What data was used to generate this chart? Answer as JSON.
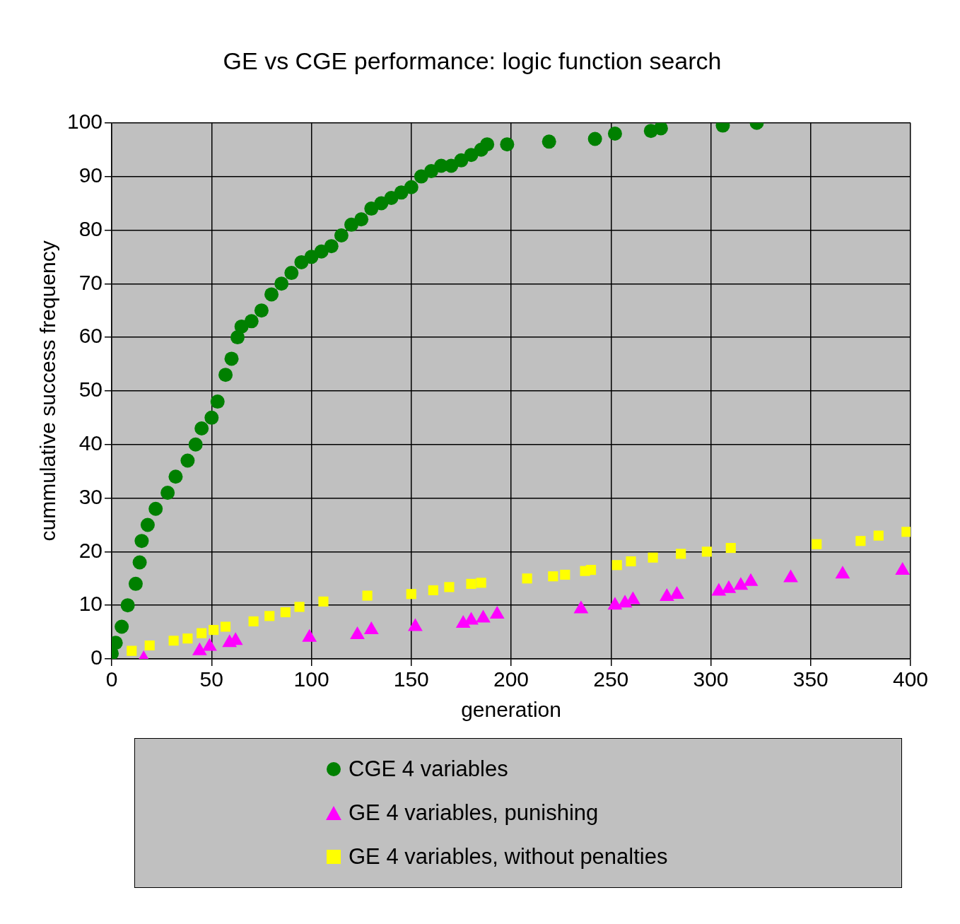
{
  "chart_data": {
    "type": "scatter",
    "title": "GE vs CGE performance: logic function search",
    "xlabel": "generation",
    "ylabel": "cummulative success frequency",
    "xlim": [
      0,
      400
    ],
    "xticks": [
      0,
      50,
      100,
      150,
      200,
      250,
      300,
      350,
      400
    ],
    "ylim": [
      0,
      100
    ],
    "yticks": [
      0,
      10,
      20,
      30,
      40,
      50,
      60,
      70,
      80,
      90,
      100
    ],
    "grid": true,
    "legend": "bottom",
    "series": [
      {
        "name": "CGE 4 variables",
        "color": "#008000",
        "marker": "circle",
        "x": [
          0,
          2,
          5,
          8,
          12,
          14,
          15,
          18,
          22,
          28,
          32,
          38,
          42,
          45,
          50,
          53,
          57,
          60,
          63,
          65,
          70,
          75,
          80,
          85,
          90,
          95,
          100,
          105,
          110,
          115,
          120,
          125,
          130,
          135,
          140,
          145,
          150,
          155,
          160,
          165,
          170,
          175,
          180,
          185,
          188,
          198,
          219,
          242,
          252,
          270,
          275,
          306,
          323
        ],
        "values": [
          1,
          3,
          6,
          10,
          14,
          18,
          22,
          25,
          28,
          31,
          34,
          37,
          40,
          43,
          45,
          48,
          53,
          56,
          60,
          62,
          63,
          65,
          68,
          70,
          72,
          74,
          75,
          76,
          77,
          79,
          81,
          82,
          84,
          85,
          86,
          87,
          88,
          90,
          91,
          92,
          92,
          93,
          94,
          95,
          96,
          96,
          96.5,
          97,
          98,
          98.5,
          99,
          99.5,
          100
        ]
      },
      {
        "name": "GE 4 variables, punishing",
        "color": "#ff00ff",
        "marker": "triangle",
        "x": [
          16,
          44,
          49,
          59,
          62,
          99,
          123,
          130,
          152,
          176,
          180,
          186,
          193,
          235,
          252,
          257,
          261,
          278,
          283,
          304,
          309,
          315,
          320,
          340,
          366,
          396
        ],
        "values": [
          0,
          1.5,
          2.3,
          3,
          3.4,
          4,
          4.5,
          5.4,
          6,
          6.6,
          7.2,
          7.6,
          8.3,
          9.3,
          10,
          10.4,
          11,
          11.6,
          12,
          12.6,
          13.1,
          13.7,
          14.4,
          15.1,
          15.8,
          16.5
        ]
      },
      {
        "name": "GE 4 variables, without penalties",
        "color": "#ffff00",
        "marker": "square",
        "x": [
          10,
          19,
          31,
          38,
          45,
          51,
          57,
          71,
          79,
          87,
          94,
          106,
          128,
          150,
          161,
          169,
          180,
          185,
          208,
          221,
          227,
          237,
          240,
          253,
          260,
          271,
          285,
          298,
          310,
          353,
          375,
          384,
          398
        ],
        "values": [
          1.5,
          2.5,
          3.4,
          3.8,
          4.8,
          5.4,
          6,
          7,
          8,
          8.7,
          9.7,
          10.7,
          11.8,
          12.1,
          12.8,
          13.4,
          14,
          14.2,
          15,
          15.4,
          15.7,
          16.4,
          16.6,
          17.5,
          18.2,
          18.9,
          19.6,
          20,
          20.7,
          21.4,
          22,
          23,
          23.7
        ]
      }
    ]
  }
}
